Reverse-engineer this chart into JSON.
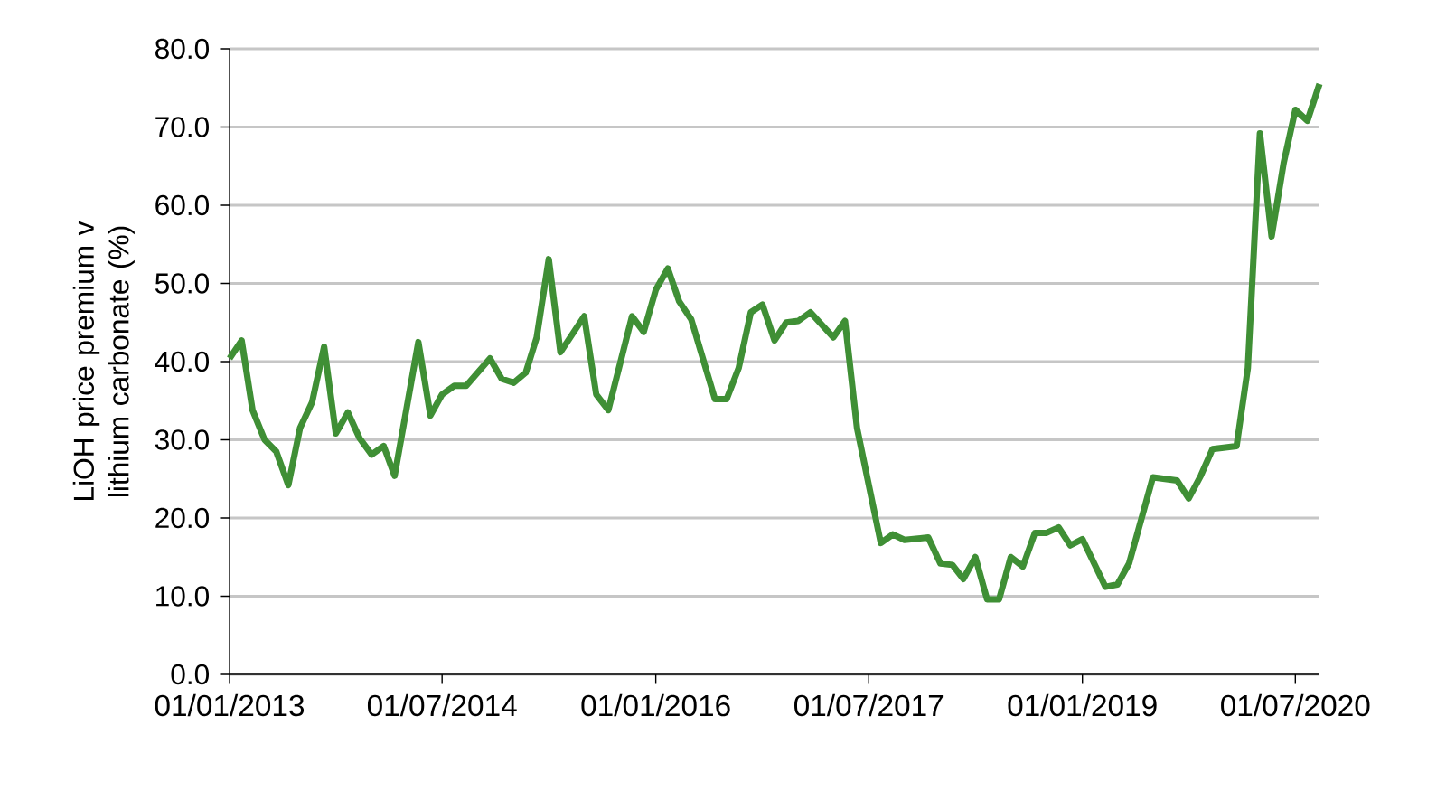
{
  "chart_data": {
    "type": "line",
    "ylabel": "LiOH price premium v lithium carbonate (%)",
    "x": [
      "2013-01",
      "2013-02",
      "2013-03",
      "2013-04",
      "2013-05",
      "2013-06",
      "2013-07",
      "2013-08",
      "2013-09",
      "2013-10",
      "2013-11",
      "2013-12",
      "2014-01",
      "2014-02",
      "2014-03",
      "2014-05",
      "2014-06",
      "2014-07",
      "2014-08",
      "2014-09",
      "2014-11",
      "2014-12",
      "2015-01",
      "2015-02",
      "2015-03",
      "2015-04",
      "2015-05",
      "2015-07",
      "2015-08",
      "2015-09",
      "2015-11",
      "2015-12",
      "2016-01",
      "2016-02",
      "2016-03",
      "2016-04",
      "2016-06",
      "2016-07",
      "2016-08",
      "2016-09",
      "2016-10",
      "2016-11",
      "2016-12",
      "2017-01",
      "2017-02",
      "2017-04",
      "2017-05",
      "2017-06",
      "2017-08",
      "2017-09",
      "2017-10",
      "2017-12",
      "2018-01",
      "2018-02",
      "2018-03",
      "2018-04",
      "2018-05",
      "2018-06",
      "2018-07",
      "2018-08",
      "2018-09",
      "2018-10",
      "2018-11",
      "2018-12",
      "2019-01",
      "2019-03",
      "2019-04",
      "2019-05",
      "2019-07",
      "2019-09",
      "2019-10",
      "2019-11",
      "2019-12",
      "2020-02",
      "2020-03",
      "2020-04",
      "2020-05",
      "2020-06",
      "2020-07",
      "2020-08",
      "2020-09"
    ],
    "series": [
      {
        "color": "#3f8f35",
        "values": [
          40.4,
          42.7,
          33.8,
          30,
          28.5,
          24.2,
          31.5,
          34.8,
          41.9,
          30.8,
          33.5,
          30.2,
          28.1,
          29.2,
          25.4,
          42.5,
          33.1,
          35.8,
          36.9,
          36.9,
          40.4,
          37.8,
          37.3,
          38.6,
          43.1,
          53.1,
          41.2,
          45.8,
          35.8,
          33.8,
          45.8,
          43.8,
          49.2,
          51.9,
          47.7,
          45.4,
          35.2,
          35.2,
          39.2,
          46.3,
          47.3,
          42.7,
          45,
          45.2,
          46.3,
          43.1,
          45.2,
          31.5,
          16.8,
          17.9,
          17.2,
          17.5,
          14.2,
          14,
          12.2,
          15,
          9.6,
          9.6,
          15,
          13.8,
          18.1,
          18.1,
          18.8,
          16.5,
          17.3,
          11.2,
          11.5,
          14.2,
          25.2,
          24.8,
          22.5,
          25.4,
          28.8,
          29.2,
          39.2,
          69.2,
          56,
          65.4,
          72.2,
          70.8,
          75.5
        ]
      }
    ],
    "xlim": [
      "2013-01",
      "2020-09"
    ],
    "xticks": [
      {
        "value": "2013-01-01",
        "label": "01/01/2013"
      },
      {
        "value": "2014-07-01",
        "label": "01/07/2014"
      },
      {
        "value": "2016-01-01",
        "label": "01/01/2016"
      },
      {
        "value": "2017-07-01",
        "label": "01/07/2017"
      },
      {
        "value": "2019-01-01",
        "label": "01/01/2019"
      },
      {
        "value": "2020-07-01",
        "label": "01/07/2020"
      }
    ],
    "ylim": [
      0,
      80
    ],
    "yticks": [
      {
        "value": 0,
        "label": "0.0"
      },
      {
        "value": 10,
        "label": "10.0"
      },
      {
        "value": 20,
        "label": "20.0"
      },
      {
        "value": 30,
        "label": "30.0"
      },
      {
        "value": 40,
        "label": "40.0"
      },
      {
        "value": 50,
        "label": "50.0"
      },
      {
        "value": 60,
        "label": "60.0"
      },
      {
        "value": 70,
        "label": "70.0"
      },
      {
        "value": 80,
        "label": "80.0"
      }
    ],
    "grid": "y",
    "marker": "none",
    "line_style": "solid"
  }
}
